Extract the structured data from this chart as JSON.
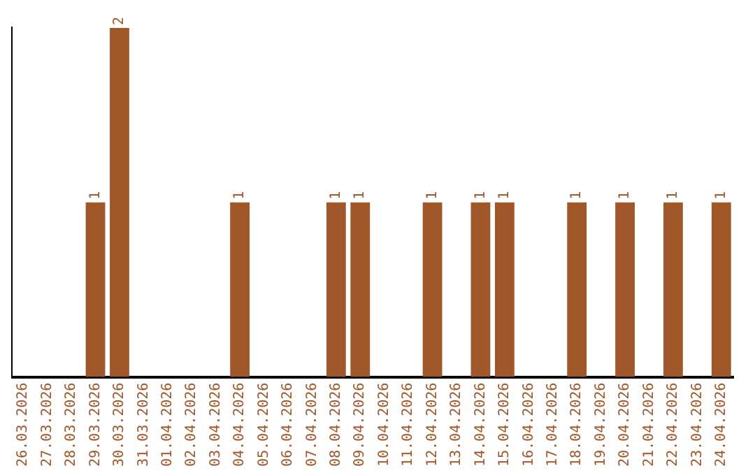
{
  "chart_data": {
    "type": "bar",
    "categories": [
      "26.03.2026",
      "27.03.2026",
      "28.03.2026",
      "29.03.2026",
      "30.03.2026",
      "31.03.2026",
      "01.04.2026",
      "02.04.2026",
      "03.04.2026",
      "04.04.2026",
      "05.04.2026",
      "06.04.2026",
      "07.04.2026",
      "08.04.2026",
      "09.04.2026",
      "10.04.2026",
      "11.04.2026",
      "12.04.2026",
      "13.04.2026",
      "14.04.2026",
      "15.04.2026",
      "16.04.2026",
      "17.04.2026",
      "18.04.2026",
      "19.04.2026",
      "20.04.2026",
      "21.04.2026",
      "22.04.2026",
      "23.04.2026",
      "24.04.2026"
    ],
    "values": [
      0,
      0,
      0,
      1,
      2,
      0,
      0,
      0,
      0,
      1,
      0,
      0,
      0,
      1,
      1,
      0,
      0,
      1,
      0,
      1,
      1,
      0,
      0,
      1,
      0,
      1,
      0,
      1,
      0,
      1
    ],
    "value_labels": [
      null,
      null,
      null,
      "1",
      "2",
      null,
      null,
      null,
      null,
      "1",
      null,
      null,
      null,
      "1",
      "1",
      null,
      null,
      "1",
      null,
      "1",
      "1",
      null,
      null,
      "1",
      null,
      "1",
      null,
      "1",
      null,
      "1"
    ],
    "color": "#a0572a",
    "grid": false,
    "legend": false
  }
}
